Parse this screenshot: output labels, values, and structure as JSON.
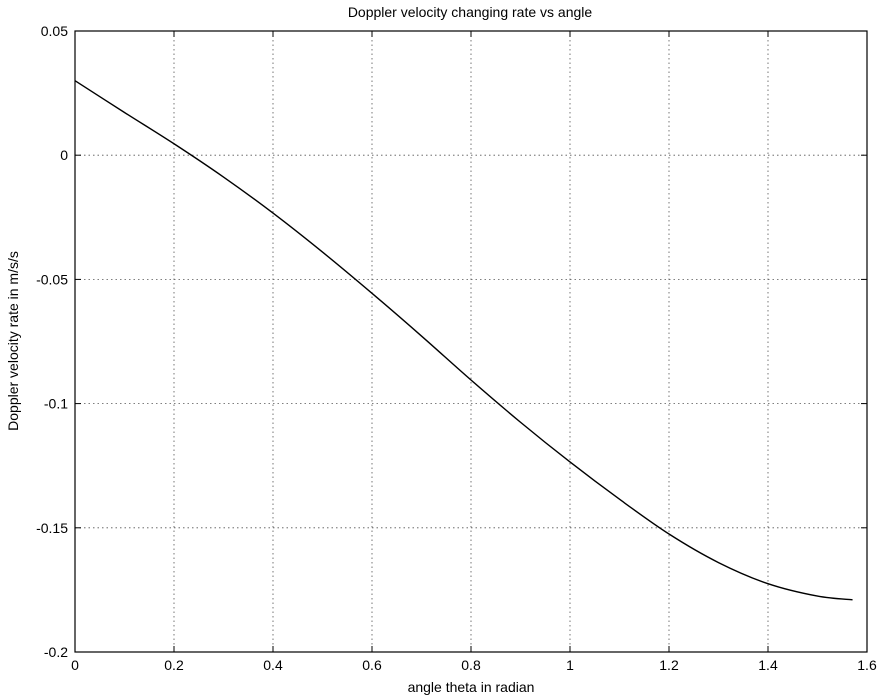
{
  "chart_data": {
    "type": "line",
    "title": "Doppler velocity changing rate vs angle",
    "xlabel": "angle theta in radian",
    "ylabel": "Doppler velocity rate in m/s/s",
    "xlim": [
      0,
      1.6
    ],
    "ylim": [
      -0.2,
      0.05
    ],
    "xticks": [
      0,
      0.2,
      0.4,
      0.6,
      0.8,
      1,
      1.2,
      1.4,
      1.6
    ],
    "xtick_labels": [
      "0",
      "0.2",
      "0.4",
      "0.6",
      "0.8",
      "1",
      "1.2",
      "1.4",
      "1.6"
    ],
    "yticks": [
      0.05,
      0,
      -0.05,
      -0.1,
      -0.15,
      -0.2
    ],
    "ytick_labels": [
      "0.05",
      "0",
      "-0.05",
      "-0.1",
      "-0.15",
      "-0.2"
    ],
    "grid": true,
    "series": [
      {
        "color": "#000000",
        "x": [
          0,
          0.1,
          0.2,
          0.3,
          0.4,
          0.5,
          0.6,
          0.7,
          0.8,
          0.9,
          1.0,
          1.1,
          1.2,
          1.3,
          1.4,
          1.5,
          1.5708
        ],
        "y": [
          0.03,
          0.0172,
          0.0046,
          -0.0088,
          -0.0233,
          -0.039,
          -0.0556,
          -0.0728,
          -0.0905,
          -0.1075,
          -0.1235,
          -0.1385,
          -0.1525,
          -0.164,
          -0.1725,
          -0.1775,
          -0.179
        ]
      }
    ]
  }
}
